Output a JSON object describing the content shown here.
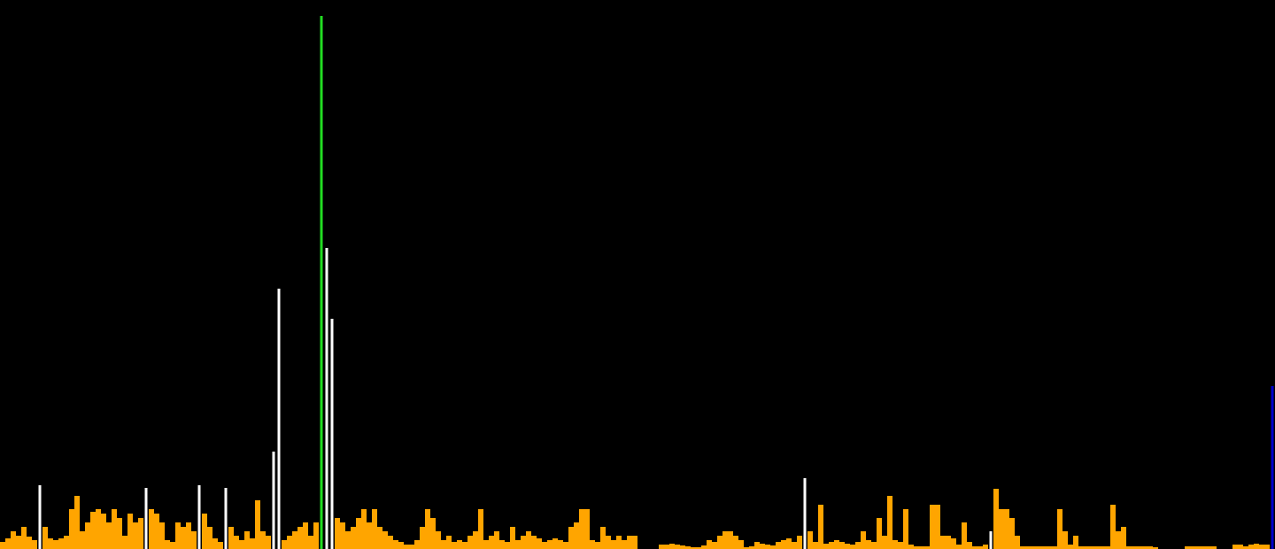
{
  "chart_data": {
    "type": "bar",
    "background": "#000000",
    "color": "#ffa500",
    "ylim": [
      0,
      620
    ],
    "values": [
      8,
      12,
      20,
      15,
      25,
      14,
      10,
      72,
      25,
      12,
      10,
      12,
      15,
      45,
      60,
      20,
      30,
      42,
      45,
      40,
      30,
      45,
      35,
      15,
      40,
      30,
      35,
      69,
      45,
      40,
      30,
      10,
      8,
      30,
      25,
      30,
      20,
      72,
      40,
      25,
      12,
      8,
      69,
      25,
      15,
      10,
      20,
      12,
      55,
      20,
      15,
      110,
      294,
      10,
      15,
      20,
      25,
      30,
      15,
      30,
      602,
      340,
      260,
      35,
      30,
      20,
      25,
      35,
      45,
      30,
      45,
      25,
      20,
      15,
      10,
      8,
      5,
      5,
      10,
      25,
      45,
      35,
      20,
      10,
      15,
      8,
      10,
      8,
      15,
      20,
      45,
      10,
      15,
      20,
      10,
      8,
      25,
      10,
      15,
      20,
      15,
      12,
      8,
      10,
      12,
      10,
      8,
      25,
      30,
      45,
      45,
      10,
      8,
      25,
      15,
      10,
      15,
      10,
      15,
      15,
      0,
      0,
      0,
      0,
      5,
      5,
      6,
      5,
      4,
      3,
      2,
      2,
      4,
      10,
      8,
      15,
      20,
      20,
      15,
      10,
      2,
      3,
      8,
      6,
      5,
      4,
      8,
      10,
      12,
      8,
      15,
      80,
      20,
      8,
      50,
      6,
      8,
      10,
      8,
      6,
      5,
      8,
      20,
      10,
      8,
      35,
      15,
      60,
      10,
      8,
      45,
      5,
      3,
      3,
      3,
      50,
      50,
      15,
      15,
      12,
      5,
      30,
      8,
      3,
      3,
      5,
      20,
      68,
      45,
      45,
      35,
      15,
      3,
      3,
      3,
      3,
      3,
      3,
      3,
      45,
      20,
      5,
      15,
      3,
      3,
      3,
      3,
      3,
      3,
      50,
      20,
      25,
      3,
      3,
      3,
      3,
      3,
      2,
      0,
      0,
      0,
      0,
      0,
      3,
      3,
      3,
      3,
      3,
      3,
      0,
      0,
      0,
      5,
      5,
      3,
      5,
      6,
      5,
      5,
      184
    ],
    "highlights": [
      {
        "index": 7,
        "color": "#ffffff"
      },
      {
        "index": 27,
        "color": "#ffffff"
      },
      {
        "index": 37,
        "color": "#ffffff"
      },
      {
        "index": 42,
        "color": "#ffffff"
      },
      {
        "index": 51,
        "color": "#ffffff"
      },
      {
        "index": 52,
        "color": "#ffffff"
      },
      {
        "index": 60,
        "color": "#22dd22"
      },
      {
        "index": 61,
        "color": "#ffffff"
      },
      {
        "index": 62,
        "color": "#ffffff"
      },
      {
        "index": 151,
        "color": "#ffffff"
      },
      {
        "index": 186,
        "color": "#ffffff"
      },
      {
        "index": 239,
        "color": "#0000cc"
      }
    ]
  }
}
